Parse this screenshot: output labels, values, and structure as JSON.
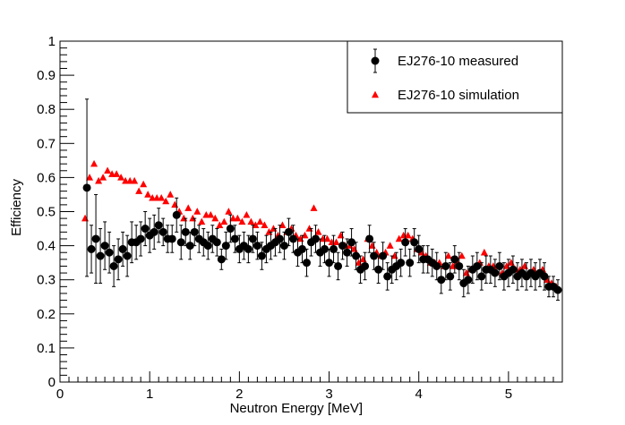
{
  "chart_data": {
    "type": "scatter",
    "title": "",
    "xlabel": "Neutron Energy [MeV]",
    "ylabel": "Efficiency",
    "xlim": [
      0,
      5.6
    ],
    "ylim": [
      0,
      1
    ],
    "x_ticks": [
      "0",
      "1",
      "2",
      "3",
      "4",
      "5"
    ],
    "y_ticks": [
      "0",
      "0.1",
      "0.2",
      "0.3",
      "0.4",
      "0.5",
      "0.6",
      "0.7",
      "0.8",
      "0.9",
      "1"
    ],
    "grid": false,
    "legend": {
      "position": "top-right"
    },
    "series": [
      {
        "name": "EJ276-10 measured",
        "marker": "circle",
        "color": "#000000",
        "points": [
          {
            "x": 0.3,
            "y": 0.57,
            "err": 0.26
          },
          {
            "x": 0.35,
            "y": 0.39,
            "err": 0.07
          },
          {
            "x": 0.4,
            "y": 0.42,
            "err": 0.13
          },
          {
            "x": 0.45,
            "y": 0.37,
            "err": 0.08
          },
          {
            "x": 0.5,
            "y": 0.4,
            "err": 0.07
          },
          {
            "x": 0.55,
            "y": 0.38,
            "err": 0.06
          },
          {
            "x": 0.6,
            "y": 0.34,
            "err": 0.06
          },
          {
            "x": 0.65,
            "y": 0.36,
            "err": 0.06
          },
          {
            "x": 0.7,
            "y": 0.39,
            "err": 0.05
          },
          {
            "x": 0.75,
            "y": 0.37,
            "err": 0.06
          },
          {
            "x": 0.8,
            "y": 0.41,
            "err": 0.06
          },
          {
            "x": 0.85,
            "y": 0.41,
            "err": 0.05
          },
          {
            "x": 0.9,
            "y": 0.42,
            "err": 0.05
          },
          {
            "x": 0.95,
            "y": 0.45,
            "err": 0.05
          },
          {
            "x": 1.0,
            "y": 0.43,
            "err": 0.05
          },
          {
            "x": 1.05,
            "y": 0.44,
            "err": 0.05
          },
          {
            "x": 1.1,
            "y": 0.46,
            "err": 0.05
          },
          {
            "x": 1.15,
            "y": 0.44,
            "err": 0.04
          },
          {
            "x": 1.2,
            "y": 0.42,
            "err": 0.04
          },
          {
            "x": 1.25,
            "y": 0.42,
            "err": 0.04
          },
          {
            "x": 1.3,
            "y": 0.49,
            "err": 0.05
          },
          {
            "x": 1.35,
            "y": 0.41,
            "err": 0.05
          },
          {
            "x": 1.4,
            "y": 0.44,
            "err": 0.04
          },
          {
            "x": 1.45,
            "y": 0.4,
            "err": 0.04
          },
          {
            "x": 1.5,
            "y": 0.44,
            "err": 0.04
          },
          {
            "x": 1.55,
            "y": 0.42,
            "err": 0.04
          },
          {
            "x": 1.6,
            "y": 0.41,
            "err": 0.04
          },
          {
            "x": 1.65,
            "y": 0.4,
            "err": 0.04
          },
          {
            "x": 1.7,
            "y": 0.42,
            "err": 0.04
          },
          {
            "x": 1.75,
            "y": 0.41,
            "err": 0.04
          },
          {
            "x": 1.8,
            "y": 0.36,
            "err": 0.03
          },
          {
            "x": 1.85,
            "y": 0.4,
            "err": 0.04
          },
          {
            "x": 1.9,
            "y": 0.45,
            "err": 0.04
          },
          {
            "x": 1.95,
            "y": 0.42,
            "err": 0.04
          },
          {
            "x": 2.0,
            "y": 0.39,
            "err": 0.04
          },
          {
            "x": 2.05,
            "y": 0.4,
            "err": 0.04
          },
          {
            "x": 2.1,
            "y": 0.39,
            "err": 0.04
          },
          {
            "x": 2.15,
            "y": 0.42,
            "err": 0.04
          },
          {
            "x": 2.2,
            "y": 0.4,
            "err": 0.04
          },
          {
            "x": 2.25,
            "y": 0.37,
            "err": 0.04
          },
          {
            "x": 2.3,
            "y": 0.39,
            "err": 0.04
          },
          {
            "x": 2.35,
            "y": 0.4,
            "err": 0.04
          },
          {
            "x": 2.4,
            "y": 0.41,
            "err": 0.04
          },
          {
            "x": 2.45,
            "y": 0.42,
            "err": 0.04
          },
          {
            "x": 2.5,
            "y": 0.4,
            "err": 0.04
          },
          {
            "x": 2.55,
            "y": 0.44,
            "err": 0.04
          },
          {
            "x": 2.6,
            "y": 0.42,
            "err": 0.04
          },
          {
            "x": 2.65,
            "y": 0.38,
            "err": 0.04
          },
          {
            "x": 2.7,
            "y": 0.39,
            "err": 0.04
          },
          {
            "x": 2.75,
            "y": 0.35,
            "err": 0.04
          },
          {
            "x": 2.8,
            "y": 0.41,
            "err": 0.04
          },
          {
            "x": 2.85,
            "y": 0.42,
            "err": 0.04
          },
          {
            "x": 2.9,
            "y": 0.38,
            "err": 0.04
          },
          {
            "x": 2.95,
            "y": 0.39,
            "err": 0.04
          },
          {
            "x": 3.0,
            "y": 0.35,
            "err": 0.04
          },
          {
            "x": 3.05,
            "y": 0.39,
            "err": 0.04
          },
          {
            "x": 3.1,
            "y": 0.34,
            "err": 0.04
          },
          {
            "x": 3.15,
            "y": 0.4,
            "err": 0.04
          },
          {
            "x": 3.2,
            "y": 0.38,
            "err": 0.04
          },
          {
            "x": 3.25,
            "y": 0.41,
            "err": 0.04
          },
          {
            "x": 3.3,
            "y": 0.37,
            "err": 0.04
          },
          {
            "x": 3.35,
            "y": 0.33,
            "err": 0.04
          },
          {
            "x": 3.4,
            "y": 0.34,
            "err": 0.04
          },
          {
            "x": 3.45,
            "y": 0.42,
            "err": 0.04
          },
          {
            "x": 3.5,
            "y": 0.37,
            "err": 0.04
          },
          {
            "x": 3.55,
            "y": 0.33,
            "err": 0.04
          },
          {
            "x": 3.6,
            "y": 0.37,
            "err": 0.04
          },
          {
            "x": 3.65,
            "y": 0.31,
            "err": 0.04
          },
          {
            "x": 3.7,
            "y": 0.33,
            "err": 0.04
          },
          {
            "x": 3.75,
            "y": 0.34,
            "err": 0.04
          },
          {
            "x": 3.8,
            "y": 0.35,
            "err": 0.04
          },
          {
            "x": 3.85,
            "y": 0.41,
            "err": 0.04
          },
          {
            "x": 3.9,
            "y": 0.35,
            "err": 0.04
          },
          {
            "x": 3.95,
            "y": 0.41,
            "err": 0.04
          },
          {
            "x": 4.0,
            "y": 0.39,
            "err": 0.04
          },
          {
            "x": 4.05,
            "y": 0.36,
            "err": 0.04
          },
          {
            "x": 4.1,
            "y": 0.36,
            "err": 0.04
          },
          {
            "x": 4.15,
            "y": 0.35,
            "err": 0.04
          },
          {
            "x": 4.2,
            "y": 0.34,
            "err": 0.04
          },
          {
            "x": 4.25,
            "y": 0.3,
            "err": 0.04
          },
          {
            "x": 4.3,
            "y": 0.34,
            "err": 0.04
          },
          {
            "x": 4.35,
            "y": 0.31,
            "err": 0.04
          },
          {
            "x": 4.4,
            "y": 0.36,
            "err": 0.04
          },
          {
            "x": 4.45,
            "y": 0.34,
            "err": 0.04
          },
          {
            "x": 4.5,
            "y": 0.29,
            "err": 0.04
          },
          {
            "x": 4.55,
            "y": 0.3,
            "err": 0.04
          },
          {
            "x": 4.6,
            "y": 0.33,
            "err": 0.04
          },
          {
            "x": 4.65,
            "y": 0.34,
            "err": 0.04
          },
          {
            "x": 4.7,
            "y": 0.31,
            "err": 0.04
          },
          {
            "x": 4.75,
            "y": 0.33,
            "err": 0.04
          },
          {
            "x": 4.8,
            "y": 0.33,
            "err": 0.04
          },
          {
            "x": 4.85,
            "y": 0.32,
            "err": 0.04
          },
          {
            "x": 4.9,
            "y": 0.34,
            "err": 0.04
          },
          {
            "x": 4.95,
            "y": 0.31,
            "err": 0.04
          },
          {
            "x": 5.0,
            "y": 0.32,
            "err": 0.04
          },
          {
            "x": 5.05,
            "y": 0.33,
            "err": 0.04
          },
          {
            "x": 5.1,
            "y": 0.31,
            "err": 0.04
          },
          {
            "x": 5.15,
            "y": 0.32,
            "err": 0.04
          },
          {
            "x": 5.2,
            "y": 0.31,
            "err": 0.04
          },
          {
            "x": 5.25,
            "y": 0.32,
            "err": 0.04
          },
          {
            "x": 5.3,
            "y": 0.31,
            "err": 0.04
          },
          {
            "x": 5.35,
            "y": 0.32,
            "err": 0.04
          },
          {
            "x": 5.4,
            "y": 0.31,
            "err": 0.04
          },
          {
            "x": 5.45,
            "y": 0.28,
            "err": 0.03
          },
          {
            "x": 5.5,
            "y": 0.28,
            "err": 0.03
          },
          {
            "x": 5.55,
            "y": 0.27,
            "err": 0.03
          }
        ]
      },
      {
        "name": "EJ276-10 simulation",
        "marker": "triangle",
        "color": "#ff0000",
        "points": [
          {
            "x": 0.28,
            "y": 0.48
          },
          {
            "x": 0.33,
            "y": 0.6
          },
          {
            "x": 0.38,
            "y": 0.64
          },
          {
            "x": 0.43,
            "y": 0.59
          },
          {
            "x": 0.48,
            "y": 0.6
          },
          {
            "x": 0.53,
            "y": 0.62
          },
          {
            "x": 0.58,
            "y": 0.61
          },
          {
            "x": 0.63,
            "y": 0.61
          },
          {
            "x": 0.68,
            "y": 0.6
          },
          {
            "x": 0.73,
            "y": 0.59
          },
          {
            "x": 0.78,
            "y": 0.59
          },
          {
            "x": 0.83,
            "y": 0.59
          },
          {
            "x": 0.88,
            "y": 0.56
          },
          {
            "x": 0.93,
            "y": 0.58
          },
          {
            "x": 0.98,
            "y": 0.55
          },
          {
            "x": 1.03,
            "y": 0.54
          },
          {
            "x": 1.08,
            "y": 0.54
          },
          {
            "x": 1.13,
            "y": 0.54
          },
          {
            "x": 1.18,
            "y": 0.53
          },
          {
            "x": 1.23,
            "y": 0.55
          },
          {
            "x": 1.28,
            "y": 0.52
          },
          {
            "x": 1.33,
            "y": 0.5
          },
          {
            "x": 1.38,
            "y": 0.48
          },
          {
            "x": 1.43,
            "y": 0.51
          },
          {
            "x": 1.48,
            "y": 0.48
          },
          {
            "x": 1.53,
            "y": 0.5
          },
          {
            "x": 1.58,
            "y": 0.47
          },
          {
            "x": 1.63,
            "y": 0.49
          },
          {
            "x": 1.68,
            "y": 0.49
          },
          {
            "x": 1.73,
            "y": 0.48
          },
          {
            "x": 1.78,
            "y": 0.46
          },
          {
            "x": 1.83,
            "y": 0.47
          },
          {
            "x": 1.88,
            "y": 0.5
          },
          {
            "x": 1.93,
            "y": 0.48
          },
          {
            "x": 1.98,
            "y": 0.48
          },
          {
            "x": 2.03,
            "y": 0.47
          },
          {
            "x": 2.08,
            "y": 0.49
          },
          {
            "x": 2.13,
            "y": 0.47
          },
          {
            "x": 2.18,
            "y": 0.46
          },
          {
            "x": 2.23,
            "y": 0.47
          },
          {
            "x": 2.28,
            "y": 0.46
          },
          {
            "x": 2.33,
            "y": 0.44
          },
          {
            "x": 2.38,
            "y": 0.45
          },
          {
            "x": 2.43,
            "y": 0.43
          },
          {
            "x": 2.48,
            "y": 0.46
          },
          {
            "x": 2.53,
            "y": 0.44
          },
          {
            "x": 2.58,
            "y": 0.45
          },
          {
            "x": 2.63,
            "y": 0.43
          },
          {
            "x": 2.68,
            "y": 0.42
          },
          {
            "x": 2.73,
            "y": 0.43
          },
          {
            "x": 2.78,
            "y": 0.45
          },
          {
            "x": 2.83,
            "y": 0.51
          },
          {
            "x": 2.88,
            "y": 0.44
          },
          {
            "x": 2.93,
            "y": 0.42
          },
          {
            "x": 2.98,
            "y": 0.42
          },
          {
            "x": 3.03,
            "y": 0.41
          },
          {
            "x": 3.08,
            "y": 0.41
          },
          {
            "x": 3.13,
            "y": 0.43
          },
          {
            "x": 3.18,
            "y": 0.4
          },
          {
            "x": 3.23,
            "y": 0.4
          },
          {
            "x": 3.28,
            "y": 0.39
          },
          {
            "x": 3.33,
            "y": 0.35
          },
          {
            "x": 3.38,
            "y": 0.36
          },
          {
            "x": 3.43,
            "y": 0.42
          },
          {
            "x": 3.48,
            "y": 0.4
          },
          {
            "x": 3.53,
            "y": 0.38
          },
          {
            "x": 3.58,
            "y": 0.37
          },
          {
            "x": 3.63,
            "y": 0.38
          },
          {
            "x": 3.68,
            "y": 0.4
          },
          {
            "x": 3.73,
            "y": 0.37
          },
          {
            "x": 3.78,
            "y": 0.42
          },
          {
            "x": 3.83,
            "y": 0.43
          },
          {
            "x": 3.88,
            "y": 0.43
          },
          {
            "x": 3.93,
            "y": 0.42
          },
          {
            "x": 3.98,
            "y": 0.39
          },
          {
            "x": 4.03,
            "y": 0.38
          },
          {
            "x": 4.08,
            "y": 0.37
          },
          {
            "x": 4.13,
            "y": 0.35
          },
          {
            "x": 4.18,
            "y": 0.35
          },
          {
            "x": 4.23,
            "y": 0.35
          },
          {
            "x": 4.28,
            "y": 0.34
          },
          {
            "x": 4.33,
            "y": 0.37
          },
          {
            "x": 4.38,
            "y": 0.34
          },
          {
            "x": 4.43,
            "y": 0.35
          },
          {
            "x": 4.48,
            "y": 0.37
          },
          {
            "x": 4.53,
            "y": 0.32
          },
          {
            "x": 4.58,
            "y": 0.33
          },
          {
            "x": 4.63,
            "y": 0.34
          },
          {
            "x": 4.68,
            "y": 0.35
          },
          {
            "x": 4.73,
            "y": 0.38
          },
          {
            "x": 4.78,
            "y": 0.34
          },
          {
            "x": 4.83,
            "y": 0.34
          },
          {
            "x": 4.88,
            "y": 0.34
          },
          {
            "x": 4.93,
            "y": 0.32
          },
          {
            "x": 4.98,
            "y": 0.34
          },
          {
            "x": 5.03,
            "y": 0.35
          },
          {
            "x": 5.08,
            "y": 0.33
          },
          {
            "x": 5.13,
            "y": 0.33
          },
          {
            "x": 5.18,
            "y": 0.34
          },
          {
            "x": 5.23,
            "y": 0.32
          },
          {
            "x": 5.28,
            "y": 0.33
          },
          {
            "x": 5.33,
            "y": 0.32
          },
          {
            "x": 5.38,
            "y": 0.33
          },
          {
            "x": 5.43,
            "y": 0.3
          },
          {
            "x": 5.48,
            "y": 0.29
          },
          {
            "x": 5.53,
            "y": 0.28
          }
        ]
      }
    ]
  }
}
